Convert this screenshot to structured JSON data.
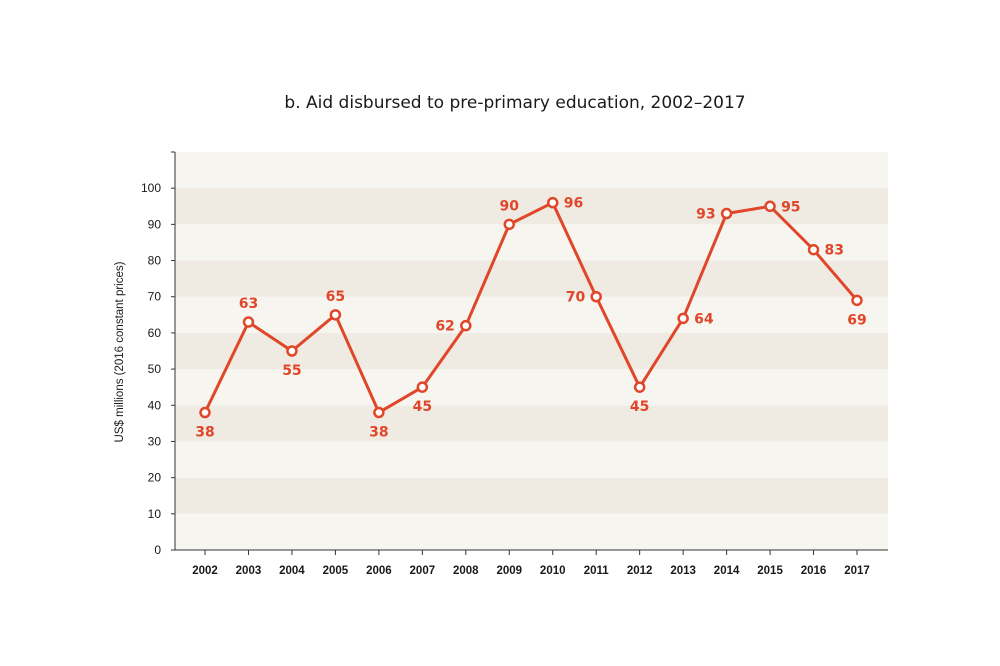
{
  "chart_data": {
    "type": "line",
    "title": "b. Aid disbursed to pre-primary education, 2002–2017",
    "xlabel": "",
    "ylabel": "US$ millions (2016 constant prices)",
    "categories": [
      "2002",
      "2003",
      "2004",
      "2005",
      "2006",
      "2007",
      "2008",
      "2009",
      "2010",
      "2011",
      "2012",
      "2013",
      "2014",
      "2015",
      "2016",
      "2017"
    ],
    "series": [
      {
        "values": [
          38,
          63,
          55,
          65,
          38,
          45,
          62,
          90,
          96,
          70,
          45,
          64,
          93,
          95,
          83,
          69
        ]
      }
    ],
    "ylim": [
      0,
      110
    ],
    "yticks": [
      0,
      10,
      20,
      30,
      40,
      50,
      60,
      70,
      80,
      90,
      100
    ],
    "data_labels": [
      "38",
      "63",
      "55",
      "65",
      "38",
      "45",
      "62",
      "90",
      "96",
      "70",
      "45",
      "64",
      "93",
      "95",
      "83",
      "69"
    ],
    "grid": "alternating horizontal bands",
    "legend": "none",
    "colors": {
      "line": "#e0472a",
      "band_light": "#f7f5f0",
      "band_dark": "#efebe3",
      "axis": "#333333"
    }
  }
}
